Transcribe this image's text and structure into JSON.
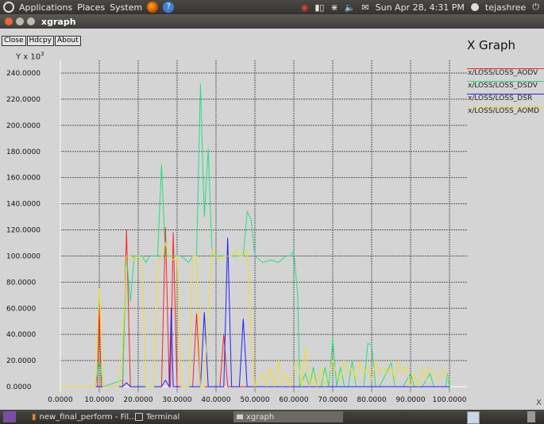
{
  "topbar": {
    "menus": [
      "Applications",
      "Places",
      "System"
    ],
    "datetime": "Sun Apr 28,  4:31 PM",
    "user": "tejashree"
  },
  "window": {
    "title": "xgraph"
  },
  "toolbar": {
    "close_label": "Close",
    "hdcpy_label": "Hdcpy",
    "about_label": "About"
  },
  "graph": {
    "title": "X Graph",
    "ylabel_prefix": "Y x 10",
    "ylabel_exp": "3",
    "xlabel": "X"
  },
  "colors": {
    "aodv": "#ff2020",
    "dsdv": "#20e080",
    "dsr": "#2020ff",
    "aomd": "#f0e020",
    "grid": "#555555",
    "axis": "#ffffff"
  },
  "taskbar": {
    "items": [
      "new_final_perform - Fil...",
      "Terminal",
      "xgraph"
    ]
  },
  "chart_data": {
    "type": "line",
    "title": "X Graph",
    "xlabel": "X",
    "ylabel": "Y x 10^3",
    "xlim": [
      0,
      100
    ],
    "ylim": [
      0,
      240
    ],
    "xticks": [
      "0.0000",
      "10.0000",
      "20.0000",
      "30.0000",
      "40.0000",
      "50.0000",
      "60.0000",
      "70.0000",
      "80.0000",
      "90.0000",
      "100.0000"
    ],
    "yticks": [
      "0.0000",
      "20.0000",
      "40.0000",
      "60.0000",
      "80.0000",
      "100.0000",
      "120.0000",
      "140.0000",
      "160.0000",
      "180.0000",
      "200.0000",
      "220.0000",
      "240.0000"
    ],
    "grid": true,
    "legend_position": "right",
    "series": [
      {
        "name": "x/LOSS/LOSS_AODV",
        "color": "#ff2020",
        "points": [
          [
            0,
            0
          ],
          [
            9.5,
            0
          ],
          [
            10,
            60
          ],
          [
            10.5,
            0
          ],
          [
            16,
            0
          ],
          [
            17,
            120
          ],
          [
            18,
            0
          ],
          [
            26,
            0
          ],
          [
            27,
            122
          ],
          [
            28,
            0
          ],
          [
            28.3,
            0
          ],
          [
            29,
            118
          ],
          [
            30,
            0
          ],
          [
            34,
            0
          ],
          [
            35,
            56
          ],
          [
            36,
            0
          ],
          [
            38,
            0
          ],
          [
            41,
            0
          ],
          [
            42,
            40
          ],
          [
            43,
            0
          ],
          [
            100,
            0
          ]
        ]
      },
      {
        "name": "x/LOSS/LOSS_DSDV",
        "color": "#20e080",
        "points": [
          [
            0,
            0
          ],
          [
            9,
            0
          ],
          [
            10,
            20
          ],
          [
            11,
            0
          ],
          [
            16,
            5
          ],
          [
            17,
            100
          ],
          [
            18,
            65
          ],
          [
            19,
            100
          ],
          [
            21,
            100
          ],
          [
            22,
            95
          ],
          [
            23,
            100
          ],
          [
            25,
            100
          ],
          [
            26,
            170
          ],
          [
            27,
            100
          ],
          [
            29,
            100
          ],
          [
            31,
            100
          ],
          [
            33,
            95
          ],
          [
            34,
            100
          ],
          [
            35,
            100
          ],
          [
            36,
            232
          ],
          [
            37,
            130
          ],
          [
            38,
            182
          ],
          [
            39,
            100
          ],
          [
            41,
            100
          ],
          [
            43,
            100
          ],
          [
            45,
            100
          ],
          [
            47,
            100
          ],
          [
            48,
            134
          ],
          [
            49,
            128
          ],
          [
            50,
            100
          ],
          [
            52,
            95
          ],
          [
            54,
            97
          ],
          [
            56,
            95
          ],
          [
            58,
            100
          ],
          [
            59,
            100
          ],
          [
            60,
            104
          ],
          [
            61,
            70
          ],
          [
            61.5,
            0
          ],
          [
            63,
            10
          ],
          [
            64,
            0
          ],
          [
            65,
            15
          ],
          [
            66,
            0
          ],
          [
            67,
            0
          ],
          [
            68,
            15
          ],
          [
            69,
            0
          ],
          [
            70,
            36
          ],
          [
            71,
            0
          ],
          [
            72,
            15
          ],
          [
            73,
            0
          ],
          [
            74,
            0
          ],
          [
            75,
            20
          ],
          [
            76,
            0
          ],
          [
            78,
            0
          ],
          [
            79,
            33
          ],
          [
            80,
            32
          ],
          [
            81,
            0
          ],
          [
            82,
            0
          ],
          [
            85,
            18
          ],
          [
            86,
            0
          ],
          [
            88,
            0
          ],
          [
            90,
            10
          ],
          [
            91,
            0
          ],
          [
            93,
            0
          ],
          [
            95,
            10
          ],
          [
            96,
            0
          ],
          [
            99,
            0
          ],
          [
            99.5,
            10
          ],
          [
            100,
            0
          ]
        ]
      },
      {
        "name": "x/LOSS/LOSS_DSR",
        "color": "#2020ff",
        "points": [
          [
            0,
            0
          ],
          [
            16,
            0
          ],
          [
            17,
            3
          ],
          [
            18,
            0
          ],
          [
            26,
            0
          ],
          [
            27,
            5
          ],
          [
            28,
            0
          ],
          [
            28.5,
            60
          ],
          [
            29,
            0
          ],
          [
            34,
            0
          ],
          [
            35,
            0
          ],
          [
            36,
            0
          ],
          [
            37,
            57
          ],
          [
            38,
            0
          ],
          [
            42,
            0
          ],
          [
            43,
            114
          ],
          [
            44,
            0
          ],
          [
            46,
            0
          ],
          [
            47,
            52
          ],
          [
            48,
            0
          ],
          [
            100,
            0
          ]
        ]
      },
      {
        "name": "x/LOSS/LOSS_AOMD",
        "color": "#f0e020",
        "points": [
          [
            0,
            0
          ],
          [
            9,
            0
          ],
          [
            10,
            75
          ],
          [
            11,
            0
          ],
          [
            15,
            0
          ],
          [
            16,
            30
          ],
          [
            17,
            100
          ],
          [
            18,
            100
          ],
          [
            19,
            97
          ],
          [
            20,
            100
          ],
          [
            21,
            95
          ],
          [
            22,
            0
          ],
          [
            24,
            0
          ],
          [
            25,
            95
          ],
          [
            26,
            100
          ],
          [
            27,
            110
          ],
          [
            28,
            100
          ],
          [
            29,
            97
          ],
          [
            30,
            100
          ],
          [
            31,
            0
          ],
          [
            33,
            0
          ],
          [
            34,
            100
          ],
          [
            35,
            100
          ],
          [
            36,
            0
          ],
          [
            37,
            0
          ],
          [
            38,
            60
          ],
          [
            39,
            105
          ],
          [
            40,
            100
          ],
          [
            41,
            97
          ],
          [
            42,
            100
          ],
          [
            43,
            100
          ],
          [
            44,
            100
          ],
          [
            45,
            105
          ],
          [
            46,
            100
          ],
          [
            47,
            100
          ],
          [
            48,
            105
          ],
          [
            49,
            40
          ],
          [
            50,
            0
          ],
          [
            52,
            10
          ],
          [
            53,
            0
          ],
          [
            54,
            15
          ],
          [
            55,
            0
          ],
          [
            56,
            20
          ],
          [
            57,
            0
          ],
          [
            58,
            10
          ],
          [
            59,
            0
          ],
          [
            60,
            15
          ],
          [
            61,
            20
          ],
          [
            62,
            0
          ],
          [
            63,
            30
          ],
          [
            64,
            0
          ],
          [
            65,
            10
          ],
          [
            66,
            0
          ],
          [
            67,
            15
          ],
          [
            68,
            0
          ],
          [
            69,
            10
          ],
          [
            70,
            20
          ],
          [
            71,
            10
          ],
          [
            72,
            5
          ],
          [
            73,
            20
          ],
          [
            74,
            10
          ],
          [
            75,
            15
          ],
          [
            76,
            5
          ],
          [
            77,
            20
          ],
          [
            78,
            10
          ],
          [
            79,
            15
          ],
          [
            80,
            5
          ],
          [
            81,
            20
          ],
          [
            82,
            10
          ],
          [
            83,
            15
          ],
          [
            84,
            10
          ],
          [
            85,
            15
          ],
          [
            86,
            5
          ],
          [
            87,
            20
          ],
          [
            88,
            10
          ],
          [
            89,
            15
          ],
          [
            90,
            0
          ],
          [
            91,
            10
          ],
          [
            92,
            0
          ],
          [
            93,
            15
          ],
          [
            94,
            5
          ],
          [
            95,
            15
          ],
          [
            96,
            10
          ],
          [
            97,
            5
          ],
          [
            98,
            15
          ],
          [
            99,
            10
          ],
          [
            100,
            5
          ]
        ]
      }
    ]
  }
}
